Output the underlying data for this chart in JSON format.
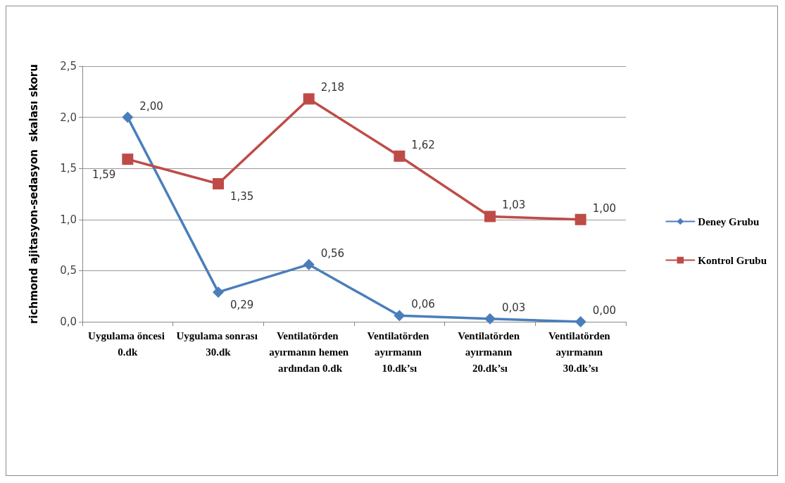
{
  "chart_data": {
    "type": "line",
    "ylabel": "richmond ajitasyon-sedasyon  skalası skoru",
    "categories": [
      "Uygulama öncesi 0.dk",
      "Uygulama sonrası 30.dk",
      "Ventilatörden ayırmanın hemen ardından 0.dk",
      "Ventilatörden ayırmanın 10.dk’sı",
      "Ventilatörden ayırmanın 20.dk’sı",
      "Ventilatörden ayırmanın 30.dk’sı"
    ],
    "series": [
      {
        "name": "Deney Grubu",
        "color": "#4a7ebb",
        "marker": "diamond",
        "values": [
          2.0,
          0.29,
          0.56,
          0.06,
          0.03,
          0.0
        ],
        "value_labels": [
          "2,00",
          "0,29",
          "0,56",
          "0,06",
          "0,03",
          "0,00"
        ]
      },
      {
        "name": "Kontrol Grubu",
        "color": "#be4b48",
        "marker": "square",
        "values": [
          1.59,
          1.35,
          2.18,
          1.62,
          1.03,
          1.0
        ],
        "value_labels": [
          "1,59",
          "1,35",
          "2,18",
          "1,62",
          "1,03",
          "1,00"
        ]
      }
    ],
    "ylim": [
      0,
      2.5
    ],
    "yticks": [
      {
        "value": 0,
        "label": "0,0"
      },
      {
        "value": 0.5,
        "label": "0,5"
      },
      {
        "value": 1,
        "label": "1,0"
      },
      {
        "value": 1.5,
        "label": "1,5"
      },
      {
        "value": 2,
        "label": "2,0"
      },
      {
        "value": 2.5,
        "label": "2,5"
      }
    ],
    "grid": "y",
    "legend": "right",
    "line_style": "solid"
  }
}
